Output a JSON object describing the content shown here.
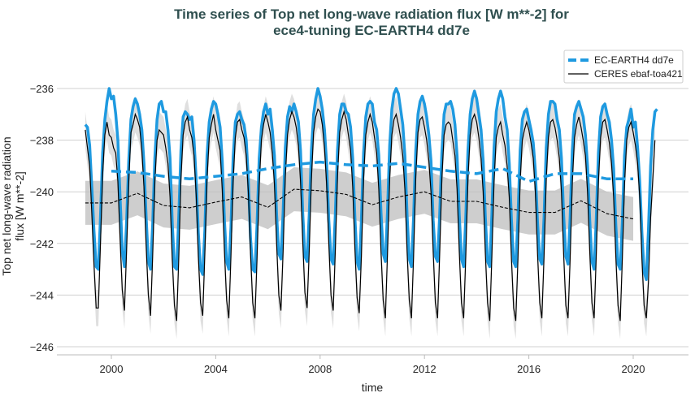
{
  "chart_data": {
    "type": "line",
    "title": [
      "Time series of Top net long-wave radiation flux [W m**-2] for",
      "ece4-tuning EC-EARTH4 dd7e"
    ],
    "xlabel": "time",
    "ylabel": [
      "Top net long-wave radiation",
      "flux [W m**-2]"
    ],
    "xlim": [
      1998.0,
      2022.2
    ],
    "ylim": [
      -246.6,
      -234.8
    ],
    "xticks": [
      2000,
      2004,
      2008,
      2012,
      2016,
      2020
    ],
    "xtick_labels": [
      "2000",
      "2004",
      "2008",
      "2012",
      "2016",
      "2020"
    ],
    "yticks": [
      -236,
      -238,
      -240,
      -242,
      -244,
      -246
    ],
    "ytick_labels": [
      "−236",
      "−238",
      "−240",
      "−242",
      "−244",
      "−246"
    ],
    "grid": "horizontal",
    "legend_position": "top-right",
    "start_year": 1999,
    "frequency": "monthly",
    "series": [
      {
        "name": "EC-EARTH4 dd7e",
        "color": "#1f9ae0",
        "style": "solid-thick",
        "monthly_by_year": [
          [
            -237.4,
            -237.5,
            -238.2,
            -239.8,
            -241.5,
            -242.9,
            -243.0,
            -241.0,
            -238.5,
            -237.2,
            -236.5,
            -236.0
          ],
          [
            -236.4,
            -236.3,
            -237.0,
            -238.0,
            -240.2,
            -242.3,
            -242.9,
            -241.2,
            -238.8,
            -237.2,
            -236.7,
            -236.4
          ],
          [
            -236.6,
            -237.0,
            -237.6,
            -238.9,
            -241.0,
            -242.7,
            -243.0,
            -241.3,
            -238.7,
            -237.2,
            -236.6,
            -236.5
          ],
          [
            -236.9,
            -236.9,
            -237.6,
            -238.7,
            -241.2,
            -242.9,
            -243.0,
            -241.0,
            -238.4,
            -237.1,
            -236.9,
            -237.0
          ],
          [
            -237.2,
            -237.1,
            -238.0,
            -239.5,
            -241.6,
            -243.0,
            -243.2,
            -241.5,
            -238.6,
            -237.3,
            -236.8,
            -236.5
          ],
          [
            -236.6,
            -237.0,
            -237.5,
            -238.8,
            -241.1,
            -242.7,
            -243.0,
            -241.4,
            -238.7,
            -237.3,
            -237.0,
            -236.9
          ],
          [
            -237.2,
            -237.4,
            -238.0,
            -239.5,
            -241.8,
            -243.0,
            -243.1,
            -241.3,
            -238.7,
            -237.5,
            -236.9,
            -236.6
          ],
          [
            -237.0,
            -236.8,
            -237.6,
            -238.6,
            -240.9,
            -242.4,
            -242.6,
            -240.8,
            -238.3,
            -237.1,
            -236.7,
            -236.9
          ],
          [
            -236.6,
            -236.9,
            -237.3,
            -238.4,
            -240.8,
            -242.5,
            -242.7,
            -240.9,
            -238.4,
            -237.0,
            -236.4,
            -236.0
          ],
          [
            -236.3,
            -236.8,
            -237.6,
            -238.9,
            -241.1,
            -242.6,
            -242.8,
            -240.9,
            -238.4,
            -237.0,
            -236.6,
            -236.6
          ],
          [
            -236.9,
            -237.0,
            -237.5,
            -238.7,
            -241.0,
            -242.7,
            -243.0,
            -241.1,
            -238.5,
            -237.1,
            -236.6,
            -236.5
          ],
          [
            -236.6,
            -237.3,
            -237.6,
            -238.6,
            -240.8,
            -242.4,
            -242.7,
            -240.8,
            -238.2,
            -236.8,
            -236.2,
            -236.0
          ],
          [
            -236.2,
            -236.8,
            -237.4,
            -238.6,
            -240.9,
            -242.6,
            -242.9,
            -241.0,
            -238.4,
            -237.0,
            -236.5,
            -236.3
          ],
          [
            -236.6,
            -237.1,
            -237.8,
            -238.8,
            -241.1,
            -242.5,
            -242.7,
            -240.9,
            -238.5,
            -237.0,
            -236.6,
            -236.6
          ],
          [
            -236.5,
            -236.8,
            -237.4,
            -238.6,
            -240.9,
            -242.6,
            -242.9,
            -241.0,
            -238.4,
            -237.0,
            -236.4,
            -236.1
          ],
          [
            -236.4,
            -237.0,
            -237.6,
            -238.8,
            -241.0,
            -242.7,
            -242.9,
            -240.9,
            -238.3,
            -236.9,
            -236.4,
            -236.1
          ],
          [
            -236.4,
            -237.1,
            -237.6,
            -238.9,
            -241.1,
            -242.7,
            -242.9,
            -241.0,
            -238.4,
            -237.2,
            -236.9,
            -236.8
          ],
          [
            -237.2,
            -237.6,
            -238.1,
            -239.2,
            -241.2,
            -242.6,
            -242.8,
            -241.0,
            -238.3,
            -237.0,
            -236.5,
            -236.5
          ],
          [
            -236.6,
            -237.2,
            -237.6,
            -238.7,
            -240.9,
            -242.5,
            -242.8,
            -241.0,
            -238.4,
            -237.0,
            -236.7,
            -236.5
          ],
          [
            -236.8,
            -237.1,
            -237.8,
            -239.0,
            -241.1,
            -242.7,
            -243.0,
            -241.1,
            -238.5,
            -237.1,
            -236.7,
            -236.6
          ],
          [
            -237.0,
            -237.3,
            -238.0,
            -239.1,
            -241.3,
            -242.8,
            -243.0,
            -241.2,
            -238.6,
            -237.5,
            -237.2,
            -236.8
          ],
          [
            -237.5,
            -237.3,
            -238.3,
            -239.6,
            -241.6,
            -243.1,
            -243.4,
            -241.5,
            -239.0,
            -237.6,
            -236.9,
            -236.8
          ]
        ],
        "running_mean": {
          "x": [
            2000,
            2001,
            2002,
            2003,
            2004,
            2005,
            2006,
            2007,
            2008,
            2009,
            2010,
            2011,
            2012,
            2013,
            2014,
            2015,
            2016,
            2017,
            2018,
            2019,
            2020
          ],
          "y": [
            -239.2,
            -239.25,
            -239.4,
            -239.5,
            -239.4,
            -239.3,
            -239.1,
            -238.95,
            -238.85,
            -238.95,
            -239.0,
            -238.9,
            -239.05,
            -239.2,
            -239.3,
            -239.1,
            -239.6,
            -239.3,
            -239.3,
            -239.5,
            -239.5
          ]
        }
      },
      {
        "name": "CERES ebaf-toa421",
        "color": "#000000",
        "style": "solid-thin",
        "band_halfwidth": 0.7,
        "monthly_by_year": [
          [
            -237.6,
            -238.3,
            -239.0,
            -240.8,
            -242.8,
            -244.5,
            -244.5,
            -242.0,
            -239.3,
            -237.8,
            -237.3,
            -237.8
          ],
          [
            -237.9,
            -238.3,
            -238.5,
            -239.6,
            -241.8,
            -243.8,
            -244.6,
            -242.3,
            -239.6,
            -237.7,
            -237.4,
            -237.0
          ],
          [
            -237.2,
            -237.5,
            -238.4,
            -239.8,
            -242.1,
            -244.0,
            -244.8,
            -242.5,
            -239.6,
            -238.0,
            -237.6,
            -237.7
          ],
          [
            -237.8,
            -238.3,
            -238.9,
            -240.2,
            -242.6,
            -244.4,
            -245.0,
            -242.6,
            -239.5,
            -237.8,
            -237.3,
            -237.1
          ],
          [
            -237.6,
            -237.9,
            -238.6,
            -240.1,
            -242.5,
            -244.3,
            -244.8,
            -242.4,
            -239.5,
            -237.9,
            -237.4,
            -237.0
          ],
          [
            -237.6,
            -238.0,
            -238.4,
            -239.9,
            -242.3,
            -244.2,
            -244.9,
            -242.5,
            -239.6,
            -237.9,
            -237.3,
            -237.2
          ],
          [
            -237.6,
            -237.9,
            -238.6,
            -240.0,
            -242.4,
            -244.3,
            -244.9,
            -242.6,
            -239.7,
            -238.0,
            -237.4,
            -237.0
          ],
          [
            -237.3,
            -237.7,
            -238.5,
            -239.7,
            -242.0,
            -244.0,
            -244.6,
            -242.3,
            -239.4,
            -237.8,
            -237.2,
            -236.9
          ],
          [
            -237.1,
            -237.5,
            -238.2,
            -239.6,
            -241.9,
            -243.9,
            -244.5,
            -242.3,
            -239.5,
            -237.7,
            -237.1,
            -236.8
          ],
          [
            -236.9,
            -237.4,
            -238.3,
            -239.7,
            -242.0,
            -244.0,
            -244.6,
            -242.3,
            -239.4,
            -237.7,
            -237.2,
            -236.9
          ],
          [
            -237.2,
            -237.8,
            -238.4,
            -239.8,
            -242.2,
            -244.1,
            -244.7,
            -242.5,
            -239.5,
            -237.8,
            -237.3,
            -237.0
          ],
          [
            -237.3,
            -237.9,
            -238.5,
            -239.9,
            -242.3,
            -244.2,
            -244.9,
            -242.4,
            -239.5,
            -237.8,
            -237.2,
            -237.0
          ],
          [
            -237.4,
            -237.9,
            -238.6,
            -239.9,
            -242.3,
            -244.2,
            -244.9,
            -242.5,
            -239.4,
            -237.7,
            -237.2,
            -237.1
          ],
          [
            -237.5,
            -238.0,
            -238.8,
            -240.0,
            -242.3,
            -244.3,
            -244.9,
            -242.4,
            -239.5,
            -237.8,
            -237.4,
            -237.3
          ],
          [
            -237.4,
            -238.0,
            -238.6,
            -239.9,
            -242.3,
            -244.3,
            -244.9,
            -242.5,
            -239.5,
            -237.8,
            -237.2,
            -237.0
          ],
          [
            -237.3,
            -237.9,
            -238.7,
            -240.0,
            -242.4,
            -244.3,
            -245.0,
            -242.5,
            -239.6,
            -237.9,
            -237.5,
            -237.3
          ],
          [
            -237.8,
            -238.2,
            -239.0,
            -240.2,
            -242.6,
            -244.5,
            -245.0,
            -242.6,
            -239.6,
            -238.0,
            -237.6,
            -237.3
          ],
          [
            -237.6,
            -238.1,
            -238.7,
            -240.0,
            -242.4,
            -244.3,
            -244.9,
            -242.5,
            -239.5,
            -237.9,
            -237.3,
            -237.2
          ],
          [
            -237.5,
            -238.0,
            -238.7,
            -240.0,
            -242.4,
            -244.4,
            -244.9,
            -242.6,
            -239.6,
            -237.9,
            -237.4,
            -237.1
          ],
          [
            -237.5,
            -238.0,
            -238.6,
            -240.0,
            -242.3,
            -244.3,
            -244.9,
            -242.5,
            -239.6,
            -237.9,
            -237.3,
            -237.2
          ],
          [
            -237.6,
            -238.1,
            -238.9,
            -240.2,
            -242.5,
            -244.4,
            -245.0,
            -242.6,
            -239.7,
            -238.0,
            -237.5,
            -237.3
          ],
          [
            -237.7,
            -238.2,
            -238.9,
            -240.2,
            -242.6,
            -244.4,
            -244.9,
            -243.5,
            -241.0,
            -239.5,
            -238.0
          ]
        ],
        "running_mean": {
          "band_halfwidth": 0.85,
          "x": [
            1999,
            2000,
            2001,
            2002,
            2003,
            2004,
            2005,
            2006,
            2007,
            2008,
            2009,
            2010,
            2011,
            2012,
            2013,
            2014,
            2015,
            2016,
            2017,
            2018,
            2019,
            2020
          ],
          "y": [
            -240.43,
            -240.43,
            -240.06,
            -240.53,
            -240.62,
            -240.4,
            -240.2,
            -240.6,
            -239.9,
            -239.96,
            -240.1,
            -240.5,
            -240.2,
            -240.0,
            -240.37,
            -240.37,
            -240.6,
            -240.8,
            -240.8,
            -240.35,
            -240.85,
            -241.05
          ]
        }
      }
    ]
  }
}
